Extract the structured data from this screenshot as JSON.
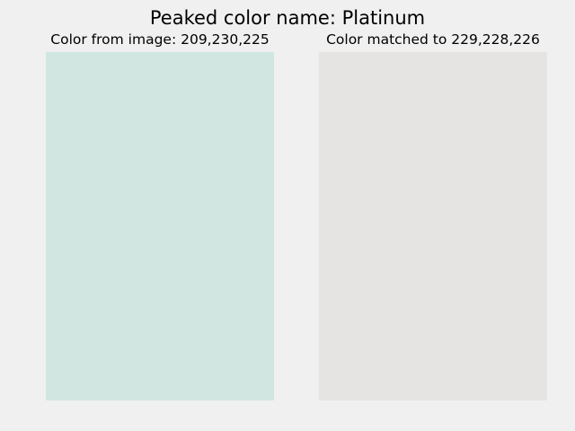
{
  "title": "Peaked color name: Platinum",
  "panels": [
    {
      "label": "Color from image: 209,230,225",
      "color": "#d1e6e1"
    },
    {
      "label": "Color matched to 229,228,226",
      "color": "#e5e4e2"
    }
  ]
}
